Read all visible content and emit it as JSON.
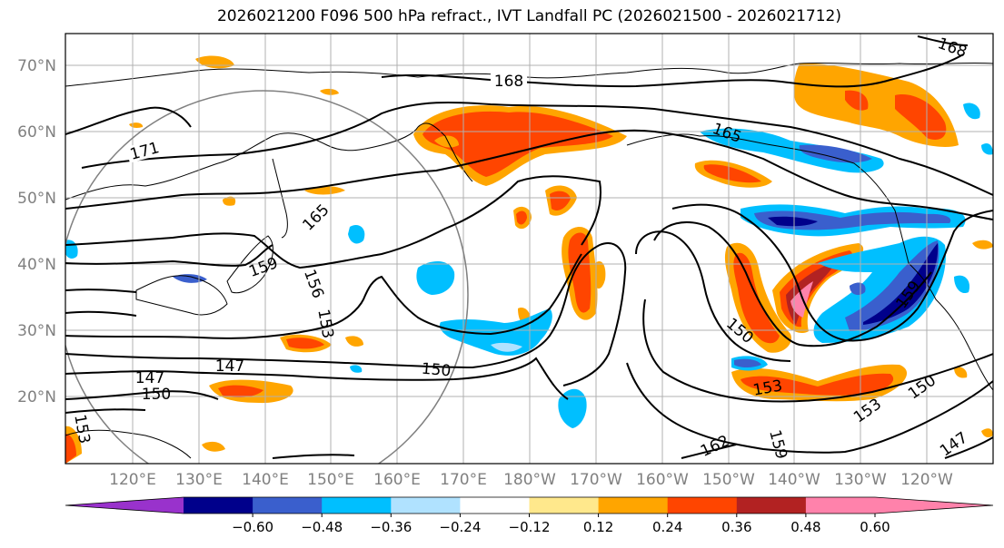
{
  "title": "2026021200 F096 500 hPa refract., IVT Landfall PC (2026021500 - 2026021712)",
  "lat_labels": [
    "70°N",
    "60°N",
    "50°N",
    "40°N",
    "30°N",
    "20°N"
  ],
  "lon_labels": [
    "120°E",
    "130°E",
    "140°E",
    "150°E",
    "160°E",
    "170°E",
    "180°W",
    "170°W",
    "160°W",
    "150°W",
    "140°W",
    "130°W",
    "120°W"
  ],
  "contour_labels": [
    "168",
    "171",
    "165",
    "159",
    "156",
    "153",
    "147",
    "150",
    "147",
    "150",
    "150",
    "153",
    "162",
    "159",
    "153",
    "150",
    "147",
    "165",
    "159",
    "168",
    "153"
  ],
  "colorbar": {
    "ticks": [
      "−0.60",
      "−0.48",
      "−0.36",
      "−0.24",
      "−0.12",
      "0.12",
      "0.24",
      "0.36",
      "0.48",
      "0.60"
    ],
    "colors": [
      "#9932cc",
      "#00008b",
      "#3a5fcd",
      "#00bfff",
      "#b0e2ff",
      "#ffffff",
      "#ffe88c",
      "#ffa500",
      "#ff4500",
      "#b22222",
      "#ff82ab",
      "#ff82ab"
    ]
  },
  "field_colors": {
    "low": "#9932cc",
    "deep_blue": "#00008b",
    "blue": "#3a5fcd",
    "sky": "#00bfff",
    "light_sky": "#b0e2ff",
    "yellow": "#ffe88c",
    "orange": "#ffa500",
    "red_orange": "#ff4500",
    "dark_red": "#b22222",
    "pink": "#ff82ab"
  }
}
